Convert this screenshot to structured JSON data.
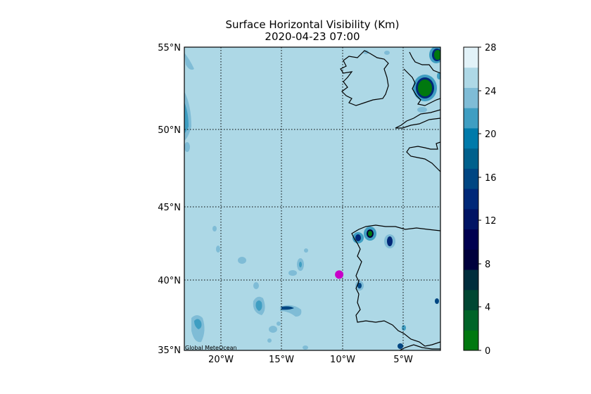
{
  "title": "Surface Horizontal Visibility (Km)",
  "subtitle": "2020-04-23 07:00",
  "credit": "Global MeteOcean",
  "map": {
    "lon_range": [
      -23,
      -2
    ],
    "lat_range": [
      35,
      55
    ],
    "lon_ticks": [
      "20°W",
      "15°W",
      "10°W",
      "5°W"
    ],
    "lat_ticks": [
      "55°N",
      "50°N",
      "45°N",
      "40°N",
      "35°N"
    ],
    "gridlines": "dotted",
    "background_color": "#add8e6",
    "marker": {
      "lon": -10.3,
      "lat": 40.0,
      "color": "#c800c8"
    }
  },
  "colorbar": {
    "ticks": [
      "28",
      "24",
      "20",
      "16",
      "12",
      "8",
      "4",
      "0"
    ],
    "range": [
      0,
      28
    ],
    "step": 2,
    "colors": [
      "#00780f",
      "#006428",
      "#004632",
      "#002d3c",
      "#00003c",
      "#000050",
      "#001464",
      "#002878",
      "#004682",
      "#00608c",
      "#007aaa",
      "#3f9ec2",
      "#7fbcd6",
      "#aed8e6",
      "#e2f2f8"
    ]
  }
}
